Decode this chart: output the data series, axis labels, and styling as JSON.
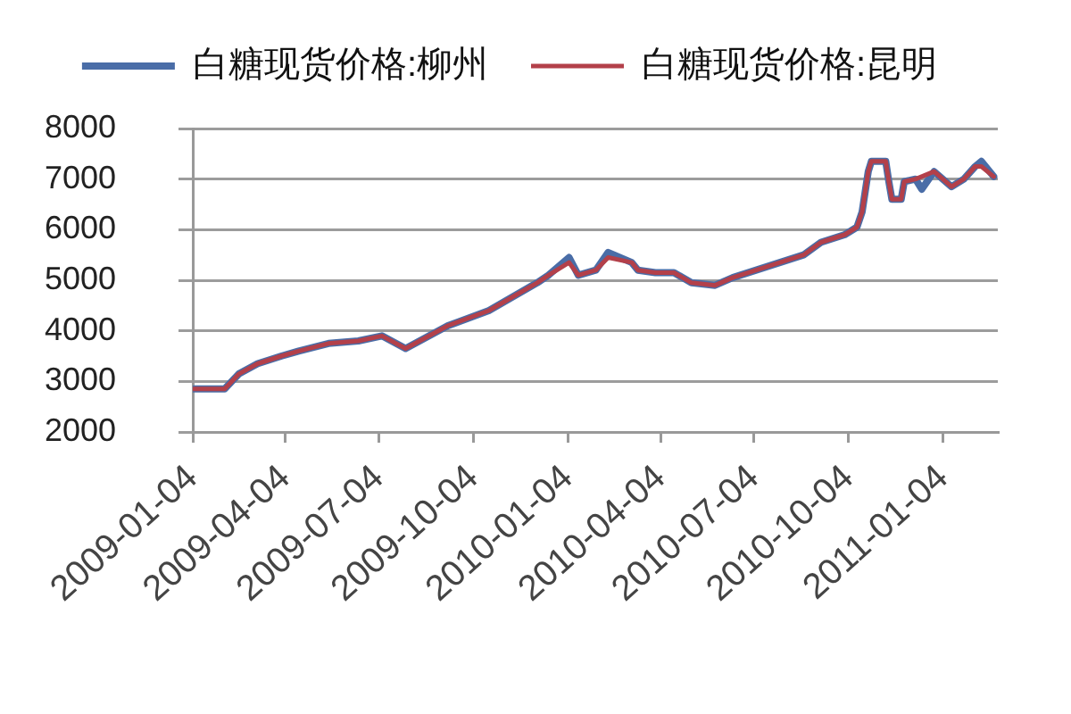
{
  "chart_data": {
    "type": "line",
    "x": [
      "2009-01-05",
      "2009-02-04",
      "2009-02-18",
      "2009-03-08",
      "2009-03-31",
      "2009-04-17",
      "2009-05-16",
      "2009-06-14",
      "2009-07-07",
      "2009-07-30",
      "2009-09-09",
      "2009-10-19",
      "2009-12-05",
      "2009-12-16",
      "2010-01-05",
      "2010-01-14",
      "2010-01-31",
      "2010-02-12",
      "2010-03-07",
      "2010-03-13",
      "2010-03-30",
      "2010-04-17",
      "2010-05-04",
      "2010-05-27",
      "2010-06-13",
      "2010-07-06",
      "2010-07-29",
      "2010-08-21",
      "2010-09-07",
      "2010-09-30",
      "2010-10-12",
      "2010-10-17",
      "2010-10-23",
      "2010-10-26",
      "2010-11-09",
      "2010-11-12",
      "2010-11-15",
      "2010-11-24",
      "2010-11-27",
      "2010-12-08",
      "2010-12-14",
      "2010-12-26",
      "2011-01-12",
      "2011-01-24",
      "2011-02-04",
      "2011-02-10",
      "2011-02-22"
    ],
    "series": [
      {
        "name": "白糖现货价格:柳州",
        "color": "#4a6da7",
        "values": [
          2850,
          2850,
          3150,
          3350,
          3500,
          3600,
          3750,
          3800,
          3900,
          3650,
          4100,
          4400,
          4950,
          5100,
          5450,
          5100,
          5200,
          5550,
          5350,
          5200,
          5150,
          5150,
          4950,
          4900,
          5050,
          5200,
          5350,
          5500,
          5750,
          5900,
          6050,
          6350,
          7150,
          7350,
          7350,
          6950,
          6600,
          6600,
          6950,
          7000,
          6800,
          7150,
          6850,
          7000,
          7250,
          7350,
          7050
        ]
      },
      {
        "name": "白糖现货价格:昆明",
        "color": "#b3404a",
        "values": [
          2850,
          2850,
          3150,
          3350,
          3500,
          3600,
          3750,
          3800,
          3900,
          3650,
          4100,
          4400,
          4950,
          5100,
          5350,
          5100,
          5200,
          5450,
          5350,
          5200,
          5150,
          5150,
          4950,
          4900,
          5050,
          5200,
          5350,
          5500,
          5750,
          5900,
          6050,
          6350,
          7150,
          7350,
          7350,
          6950,
          6600,
          6600,
          6950,
          7000,
          7050,
          7150,
          6850,
          7000,
          7250,
          7250,
          7050
        ]
      }
    ],
    "xlim": [
      "2009-01-04",
      "2011-02-26"
    ],
    "xticks": [
      "2009-01-04",
      "2009-04-04",
      "2009-07-04",
      "2009-10-04",
      "2010-01-04",
      "2010-04-04",
      "2010-07-04",
      "2010-10-04",
      "2011-01-04"
    ],
    "ylim": [
      2000,
      8000
    ],
    "yticks": [
      2000,
      3000,
      4000,
      5000,
      6000,
      7000,
      8000
    ],
    "grid": "y",
    "legend": "top"
  }
}
